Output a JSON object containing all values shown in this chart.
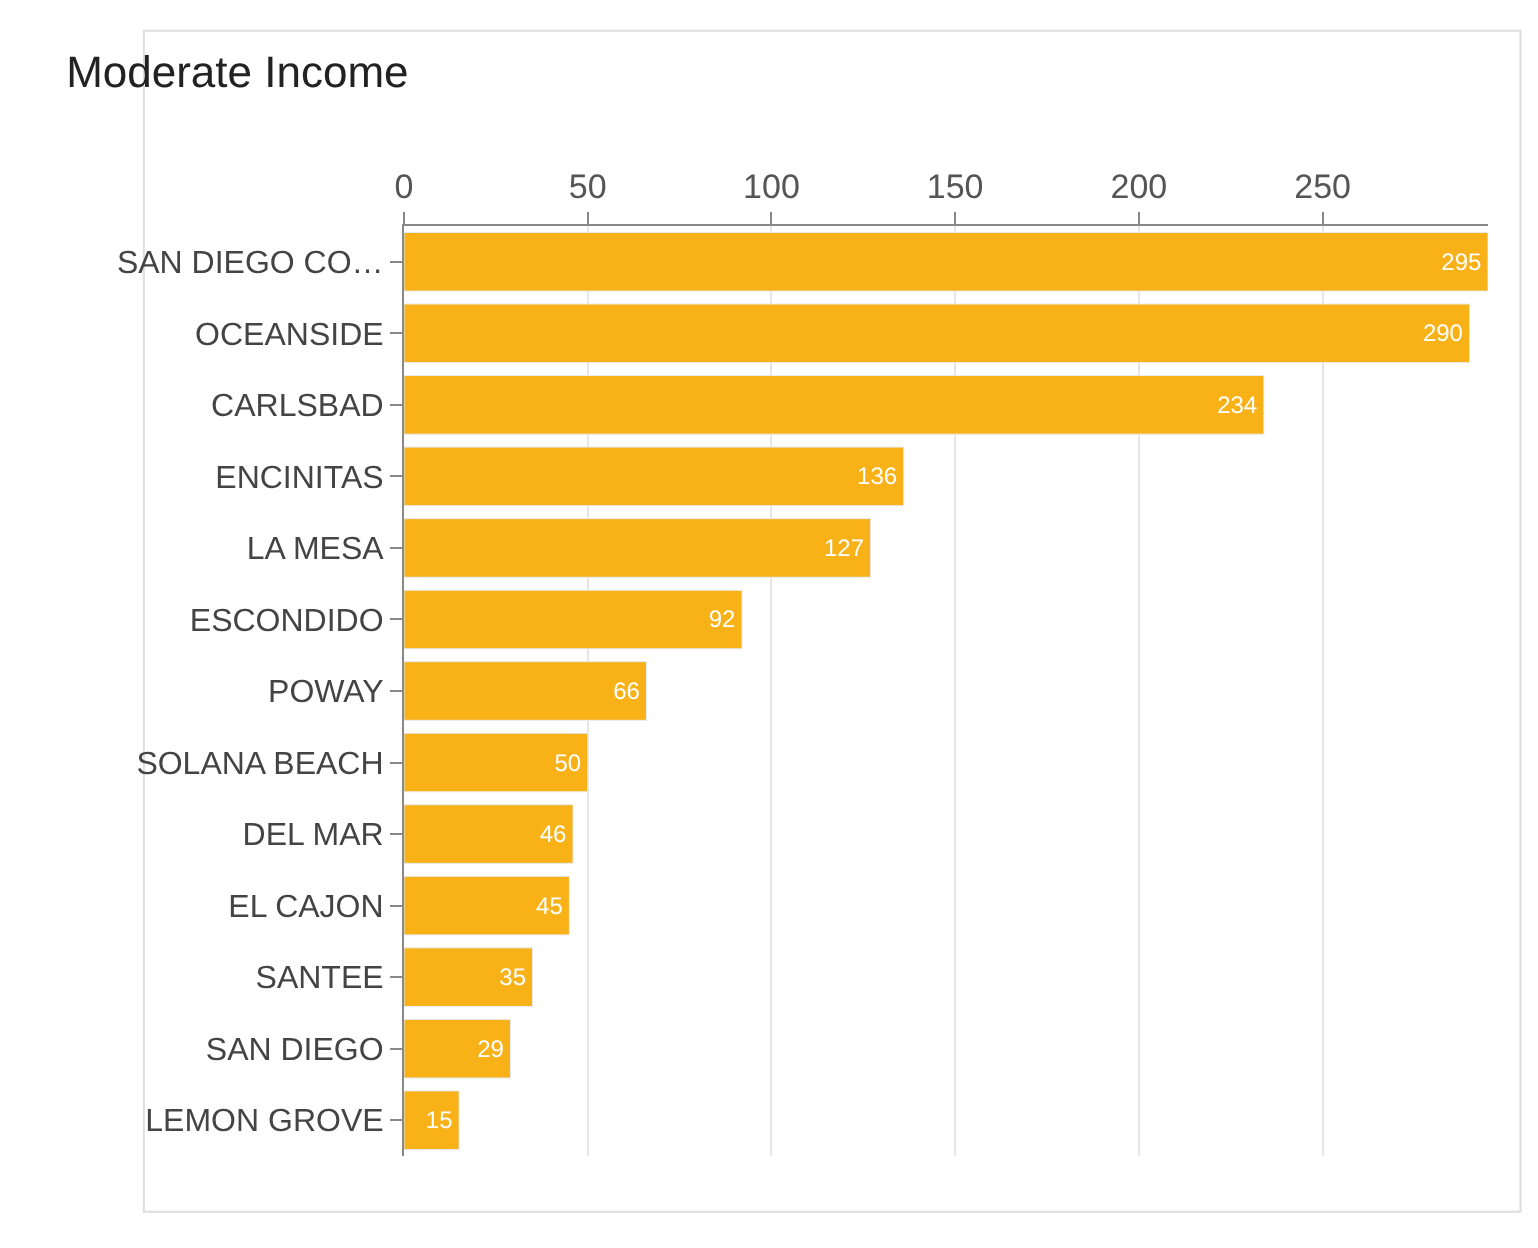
{
  "chart_data": {
    "type": "bar",
    "orientation": "horizontal",
    "title": "Moderate Income",
    "categories": [
      "SAN DIEGO CO…",
      "OCEANSIDE",
      "CARLSBAD",
      "ENCINITAS",
      "LA MESA",
      "ESCONDIDO",
      "POWAY",
      "SOLANA BEACH",
      "DEL MAR",
      "EL CAJON",
      "SANTEE",
      "SAN DIEGO",
      "LEMON GROVE"
    ],
    "values": [
      295,
      290,
      234,
      136,
      127,
      92,
      66,
      50,
      46,
      45,
      35,
      29,
      15
    ],
    "color": "#f8b217",
    "data_labels": true,
    "xlim": [
      0,
      295
    ],
    "xticks": [
      0,
      50,
      100,
      150,
      200,
      250
    ],
    "grid": "x"
  }
}
